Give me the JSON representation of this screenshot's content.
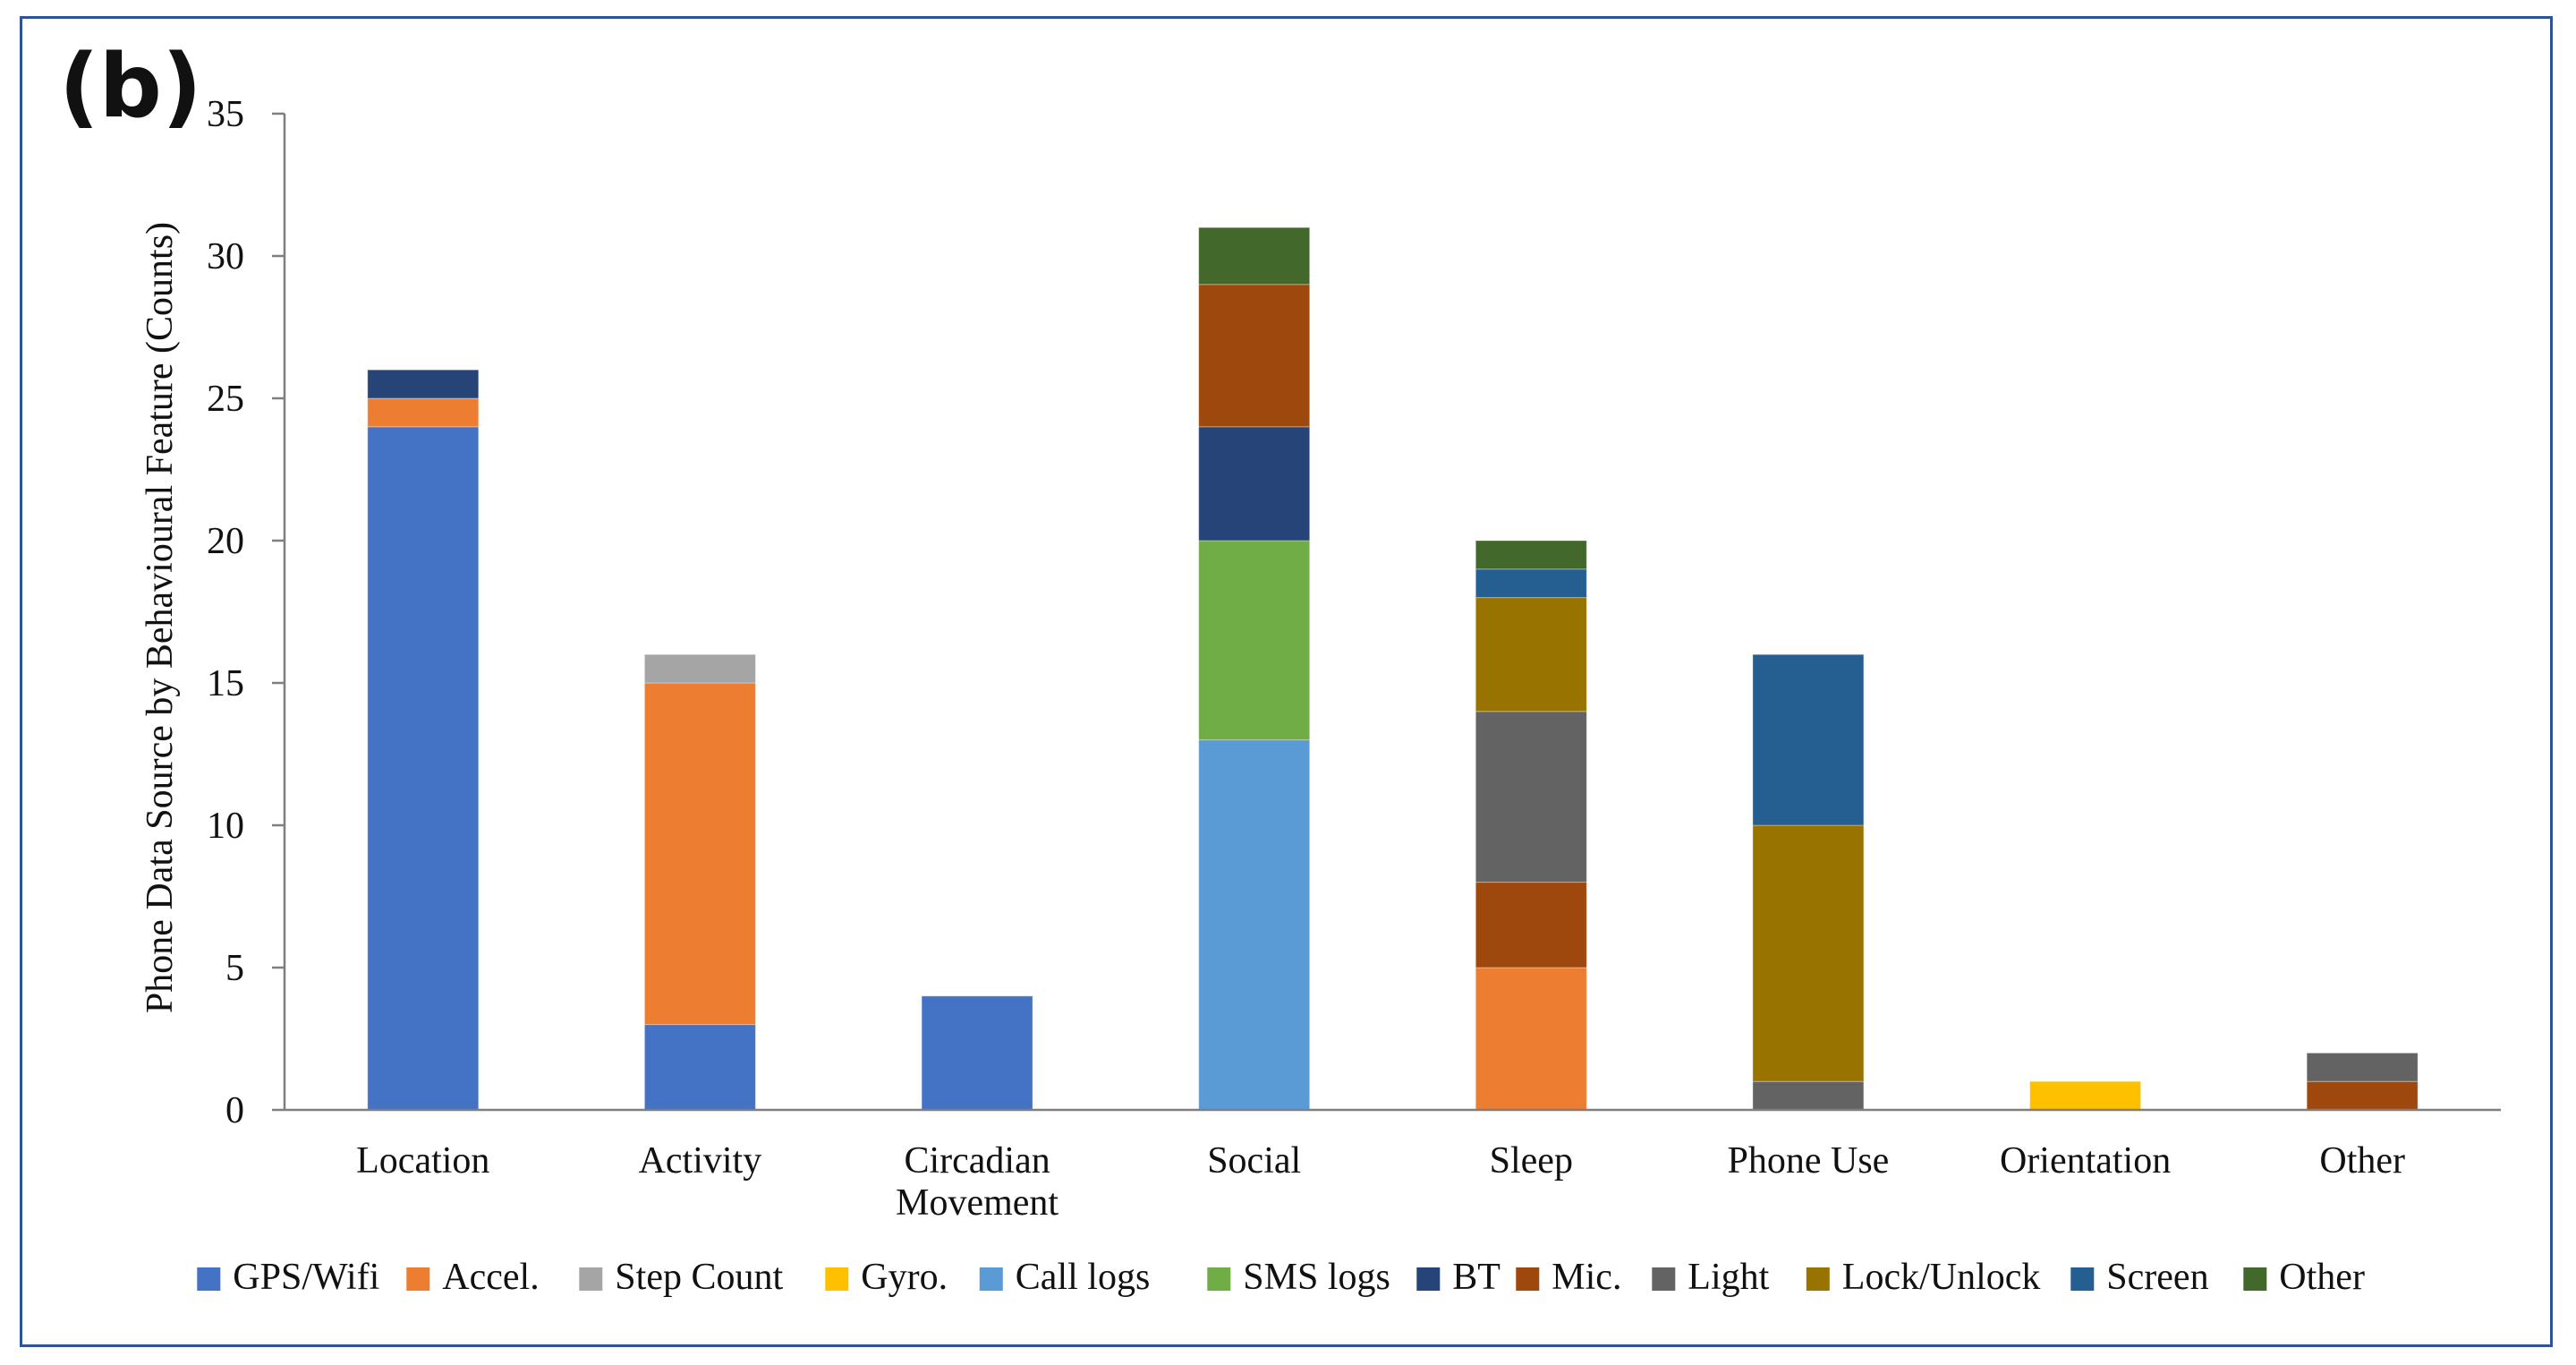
{
  "panel_label": "(b)",
  "chart_data": {
    "type": "bar",
    "stacked": true,
    "title": "",
    "xlabel": "",
    "ylabel": "Phone Data Source by Behavioural Feature (Counts)",
    "ylim": [
      0,
      35
    ],
    "yticks": [
      0,
      5,
      10,
      15,
      20,
      25,
      30,
      35
    ],
    "grid": false,
    "legend_position": "bottom",
    "categories": [
      "Location",
      "Activity",
      "Circadian Movement",
      "Social",
      "Sleep",
      "Phone Use",
      "Orientation",
      "Other"
    ],
    "category_labels": [
      [
        "Location"
      ],
      [
        "Activity"
      ],
      [
        "Circadian",
        "Movement"
      ],
      [
        "Social"
      ],
      [
        "Sleep"
      ],
      [
        "Phone Use"
      ],
      [
        "Orientation"
      ],
      [
        "Other"
      ]
    ],
    "series": [
      {
        "name": "GPS/Wifi",
        "color": "#4472c4",
        "values": [
          24,
          3,
          4,
          0,
          0,
          0,
          0,
          0
        ]
      },
      {
        "name": "Accel.",
        "color": "#ed7d31",
        "values": [
          1,
          12,
          0,
          0,
          5,
          0,
          0,
          0
        ]
      },
      {
        "name": "Step Count",
        "color": "#a5a5a5",
        "values": [
          0,
          1,
          0,
          0,
          0,
          0,
          0,
          0
        ]
      },
      {
        "name": "Gyro.",
        "color": "#ffc000",
        "values": [
          0,
          0,
          0,
          0,
          0,
          0,
          1,
          0
        ]
      },
      {
        "name": "Call logs",
        "color": "#5b9bd5",
        "values": [
          0,
          0,
          0,
          13,
          0,
          0,
          0,
          0
        ]
      },
      {
        "name": "SMS logs",
        "color": "#70ad47",
        "values": [
          0,
          0,
          0,
          7,
          0,
          0,
          0,
          0
        ]
      },
      {
        "name": "BT",
        "color": "#264478",
        "values": [
          1,
          0,
          0,
          4,
          0,
          0,
          0,
          0
        ]
      },
      {
        "name": "Mic.",
        "color": "#9e480e",
        "values": [
          0,
          0,
          0,
          5,
          3,
          0,
          0,
          1
        ]
      },
      {
        "name": "Light",
        "color": "#636363",
        "values": [
          0,
          0,
          0,
          0,
          6,
          1,
          0,
          1
        ]
      },
      {
        "name": "Lock/Unlock",
        "color": "#997300",
        "values": [
          0,
          0,
          0,
          0,
          4,
          9,
          0,
          0
        ]
      },
      {
        "name": "Screen",
        "color": "#255e91",
        "values": [
          0,
          0,
          0,
          0,
          1,
          6,
          0,
          0
        ]
      },
      {
        "name": "Other",
        "color": "#43682b",
        "values": [
          0,
          0,
          0,
          2,
          1,
          0,
          0,
          0
        ]
      }
    ]
  }
}
